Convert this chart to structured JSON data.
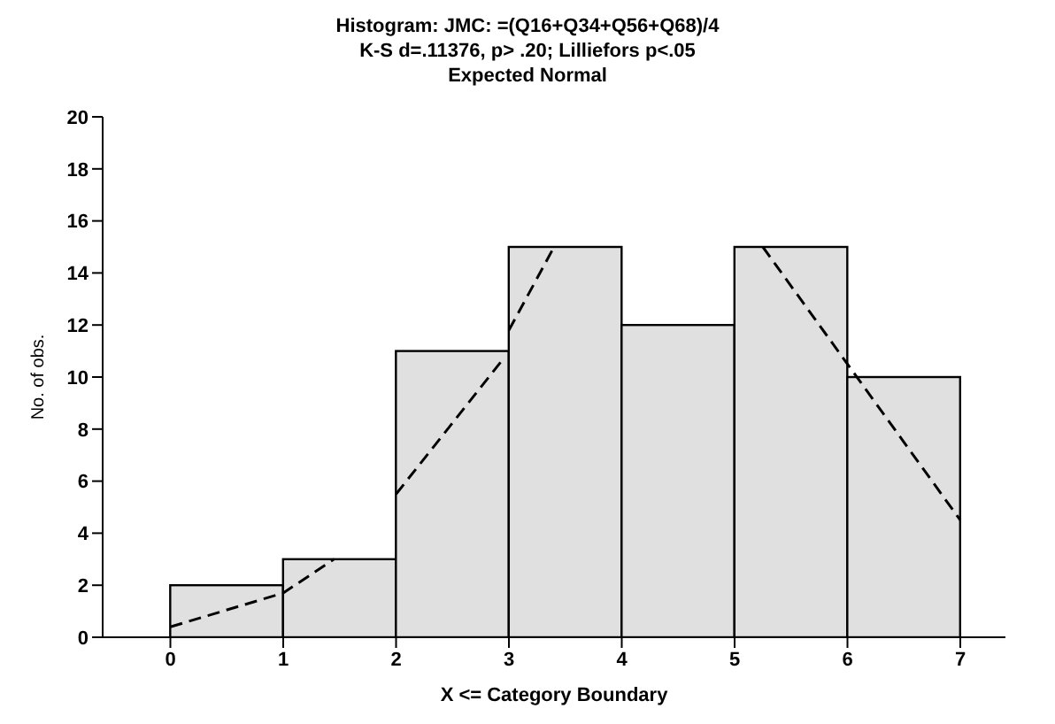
{
  "chart_data": {
    "type": "histogram",
    "title": "Histogram: JMC: =(Q16+Q34+Q56+Q68)/4",
    "subtitle": "K-S d=.11376, p> .20; Lilliefors p<.05",
    "xlabel": "X <= Category Boundary",
    "ylabel": "No. of obs.",
    "bins": [
      0,
      1,
      2,
      3,
      4,
      5,
      6,
      7
    ],
    "values": [
      2,
      3,
      11,
      15,
      12,
      15,
      10
    ],
    "color": "#e0e0e0",
    "series": [
      {
        "type": "line",
        "name": "Expected Normal",
        "color": "#000000",
        "line_style": "dashed",
        "x": [
          0,
          1,
          1.45
        ],
        "values": [
          0.4,
          1.7,
          3
        ]
      },
      {
        "type": "line",
        "color": "#000000",
        "line_style": "dashed",
        "x": [
          2,
          2.95
        ],
        "values": [
          5.5,
          10.7
        ]
      },
      {
        "type": "line",
        "color": "#000000",
        "line_style": "dashed",
        "x": [
          3,
          3.4
        ],
        "values": [
          11.8,
          15
        ]
      },
      {
        "type": "line",
        "color": "#000000",
        "line_style": "dashed",
        "x": [
          5.25,
          6,
          7
        ],
        "values": [
          15,
          10.5,
          4.5
        ]
      }
    ],
    "xlim": [
      -0.6,
      7.4
    ],
    "xticks": [
      0,
      1,
      2,
      3,
      4,
      5,
      6,
      7
    ],
    "ylim": [
      0,
      20
    ],
    "yticks": [
      0,
      2,
      4,
      6,
      8,
      10,
      12,
      14,
      16,
      18,
      20
    ],
    "marker": "none"
  }
}
